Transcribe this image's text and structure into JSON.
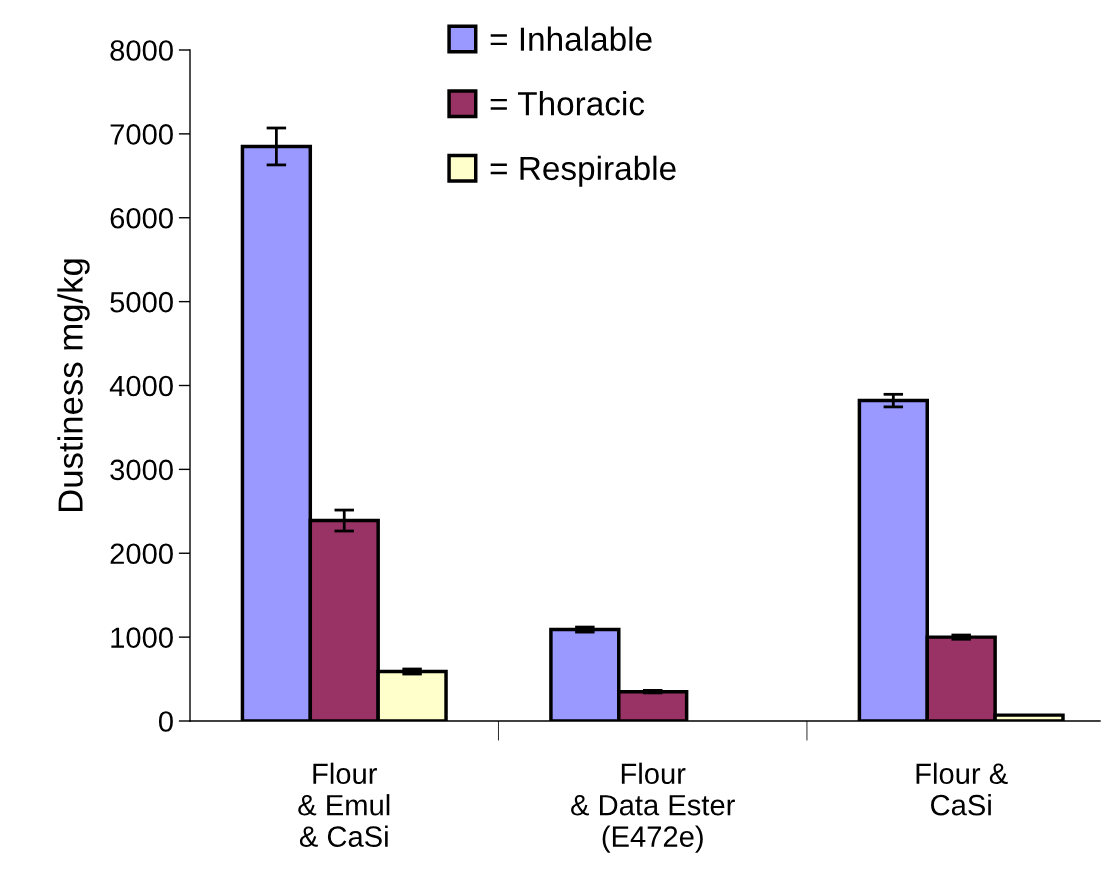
{
  "chart_data": {
    "type": "bar",
    "ylabel": "Dustiness mg/kg",
    "categories": [
      "Flour\n& Emul\n& CaSi",
      "Flour\n& Data Ester\n(E472e)",
      "Flour &\nCaSi"
    ],
    "series": [
      {
        "name": "= Inhalable",
        "color": "#9999ff",
        "values": [
          6850,
          1090,
          3820
        ],
        "errors": [
          220,
          30,
          75
        ]
      },
      {
        "name": "= Thoracic",
        "color": "#993366",
        "values": [
          2390,
          350,
          1000
        ],
        "errors": [
          125,
          15,
          25
        ]
      },
      {
        "name": "= Respirable",
        "color": "#ffffcc",
        "values": [
          590,
          null,
          70
        ],
        "errors": [
          30,
          null,
          null
        ]
      }
    ],
    "ylim": [
      0,
      8000
    ],
    "yticks": [
      0,
      1000,
      2000,
      3000,
      4000,
      5000,
      6000,
      7000,
      8000
    ],
    "grid": false,
    "legend": "top"
  }
}
